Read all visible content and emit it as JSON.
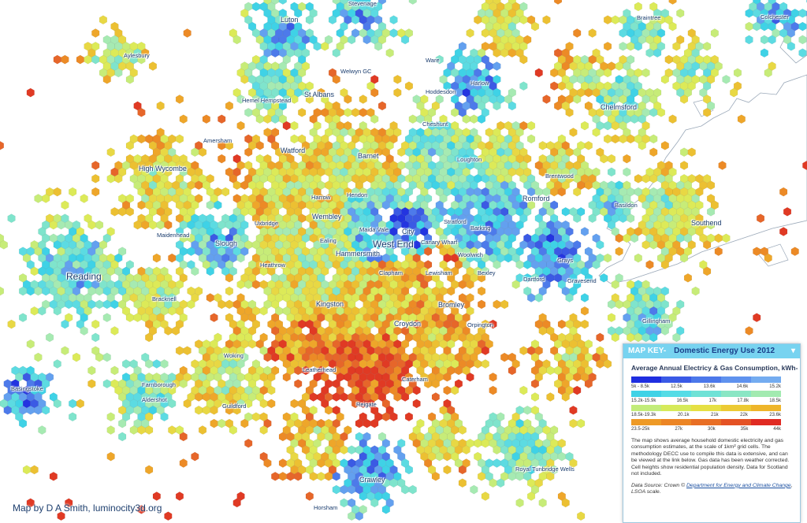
{
  "credit": "Map by D A Smith, luminocity3d.org",
  "legend": {
    "key_label": "MAP KEY-",
    "title": "Domestic Energy Use 2012",
    "subtitle": "Average Annual Electricy & Gas Consumption, kWh-",
    "bands": [
      {
        "labels": [
          "5k - 8.5k",
          "12.5k",
          "13.6k",
          "14.6k",
          "15.2k"
        ],
        "colors": [
          "#1f2ee0",
          "#3a5ae6",
          "#4c78ea",
          "#5f92ee",
          "#74acf0"
        ]
      },
      {
        "labels": [
          "15.2k-15.9k",
          "16.5k",
          "17k",
          "17.8k",
          "18.5k"
        ],
        "colors": [
          "#3fd2e6",
          "#55dce6",
          "#6fe2d6",
          "#8ae6c4",
          "#a2eab0"
        ]
      },
      {
        "labels": [
          "18.5k-19.3k",
          "20.1k",
          "21k",
          "22k",
          "23.6k"
        ],
        "colors": [
          "#c2ec7a",
          "#d6ea5a",
          "#e6e044",
          "#ecca34",
          "#eeb52a"
        ]
      },
      {
        "labels": [
          "23.5-25k",
          "27k",
          "30k",
          "35k",
          "44k"
        ],
        "colors": [
          "#ee9a26",
          "#ec8524",
          "#e86e24",
          "#e45224",
          "#e02a22"
        ]
      }
    ],
    "description": "The map shows average household domestic electricity and gas consumption estimates, at the scale of 1km² grid cells. The methodology DECC use to compile this data is extensive, and can be viewed at the link below. Gas data has been weather corrected. Cell heights show residential population density. Data for Scotland not included.",
    "source_prefix": "Data Source: Crown ©",
    "source_link": "Department for Energy and Climate Change",
    "source_suffix": ", LSOA scale."
  },
  "places": [
    {
      "name": "Stevenage",
      "size": "small"
    },
    {
      "name": "Luton",
      "size": "mid"
    },
    {
      "name": "Braintree",
      "size": "small"
    },
    {
      "name": "Colchester",
      "size": "small"
    },
    {
      "name": "Aylesbury",
      "size": "small"
    },
    {
      "name": "Ware",
      "size": "small"
    },
    {
      "name": "Welwyn GC",
      "size": "small"
    },
    {
      "name": "Harlow",
      "size": "small"
    },
    {
      "name": "Hoddesdon",
      "size": "small"
    },
    {
      "name": "Hemel Hempstead",
      "size": "small"
    },
    {
      "name": "St Albans",
      "size": "mid"
    },
    {
      "name": "Cheshunt",
      "size": "small"
    },
    {
      "name": "Chelmsford",
      "size": "mid"
    },
    {
      "name": "Amersham",
      "size": "small"
    },
    {
      "name": "Watford",
      "size": "mid"
    },
    {
      "name": "Barnet",
      "size": "mid"
    },
    {
      "name": "Loughton",
      "size": "small"
    },
    {
      "name": "High Wycombe",
      "size": "mid"
    },
    {
      "name": "Brentwood",
      "size": "small"
    },
    {
      "name": "Harrow",
      "size": "small"
    },
    {
      "name": "Hendon",
      "size": "small"
    },
    {
      "name": "Romford",
      "size": "mid"
    },
    {
      "name": "Basildon",
      "size": "small"
    },
    {
      "name": "Wembley",
      "size": "mid"
    },
    {
      "name": "Stratford",
      "size": "small"
    },
    {
      "name": "Barking",
      "size": "small"
    },
    {
      "name": "Uxbridge",
      "size": "small"
    },
    {
      "name": "Maida Vale",
      "size": "small"
    },
    {
      "name": "City",
      "size": "mid"
    },
    {
      "name": "Southend",
      "size": "mid"
    },
    {
      "name": "Maidenhead",
      "size": "small"
    },
    {
      "name": "Ealing",
      "size": "small"
    },
    {
      "name": "West End",
      "size": "big"
    },
    {
      "name": "Canary Wharf",
      "size": "small"
    },
    {
      "name": "Slough",
      "size": "mid"
    },
    {
      "name": "Hammersmith",
      "size": "mid"
    },
    {
      "name": "Woolwich",
      "size": "small"
    },
    {
      "name": "Grays",
      "size": "small"
    },
    {
      "name": "Heathrow",
      "size": "small"
    },
    {
      "name": "Clapham",
      "size": "small"
    },
    {
      "name": "Lewisham",
      "size": "small"
    },
    {
      "name": "Bexley",
      "size": "small"
    },
    {
      "name": "Dartford",
      "size": "small"
    },
    {
      "name": "Gravesend",
      "size": "small"
    },
    {
      "name": "Reading",
      "size": "big"
    },
    {
      "name": "Bracknell",
      "size": "small"
    },
    {
      "name": "Kingston",
      "size": "mid"
    },
    {
      "name": "Bromley",
      "size": "mid"
    },
    {
      "name": "Croydon",
      "size": "mid"
    },
    {
      "name": "Orpington",
      "size": "small"
    },
    {
      "name": "Gillingham",
      "size": "small"
    },
    {
      "name": "Woking",
      "size": "small"
    },
    {
      "name": "Leatherhead",
      "size": "small"
    },
    {
      "name": "Caterham",
      "size": "small"
    },
    {
      "name": "Basingstoke",
      "size": "small"
    },
    {
      "name": "Farnborough",
      "size": "small"
    },
    {
      "name": "Aldershot",
      "size": "small"
    },
    {
      "name": "Guildford",
      "size": "small"
    },
    {
      "name": "Reigate",
      "size": "small"
    },
    {
      "name": "Royal Tunbridge Wells",
      "size": "small"
    },
    {
      "name": "Crawley",
      "size": "mid"
    },
    {
      "name": "Horsham",
      "size": "small"
    }
  ]
}
